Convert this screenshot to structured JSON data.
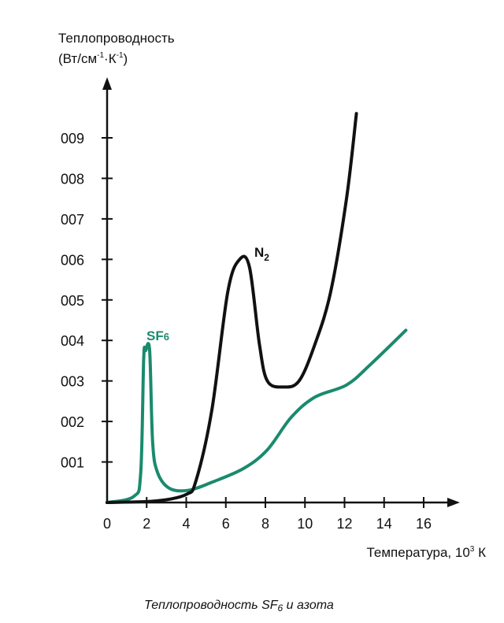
{
  "chart_data": {
    "type": "line",
    "title": "",
    "caption": "Теплопроводность SF6 и азота",
    "ylabel_line1": "Теплопроводность",
    "ylabel_line2": "(Вт/см-1·К-1)",
    "xlabel": "Температура, 10³ К",
    "xlim": [
      0,
      16
    ],
    "ylim": [
      0,
      0.09
    ],
    "x_ticks": [
      0,
      2,
      4,
      6,
      8,
      10,
      12,
      14,
      16
    ],
    "x_tick_labels": [
      "0",
      "2",
      "4",
      "6",
      "8",
      "10",
      "12",
      "14",
      "16"
    ],
    "y_ticks": [
      0.01,
      0.02,
      0.03,
      0.04,
      0.05,
      0.06,
      0.07,
      0.08,
      0.09
    ],
    "y_tick_labels": [
      "001",
      "002",
      "003",
      "004",
      "005",
      "006",
      "007",
      "008",
      "009"
    ],
    "grid": false,
    "series": [
      {
        "name": "N2",
        "color": "#111111",
        "x": [
          0,
          2.5,
          4,
          4.5,
          5.3,
          6.1,
          6.7,
          7.2,
          7.7,
          8.1,
          8.9,
          9.7,
          10.5,
          11.3,
          12.1,
          12.6
        ],
        "y": [
          0,
          0.0004,
          0.002,
          0.0055,
          0.023,
          0.052,
          0.06,
          0.058,
          0.039,
          0.03,
          0.0285,
          0.03,
          0.039,
          0.052,
          0.075,
          0.096
        ]
      },
      {
        "name": "SF6",
        "color": "#1a8a6e",
        "x": [
          0,
          1.35,
          1.7,
          1.85,
          1.95,
          2.15,
          2.3,
          2.55,
          3.15,
          4.1,
          5.3,
          6.9,
          8.1,
          9.3,
          10.5,
          12.1,
          13.3,
          15.1
        ],
        "y": [
          0,
          0.0015,
          0.0074,
          0.0356,
          0.0375,
          0.0375,
          0.015,
          0.0074,
          0.0035,
          0.003,
          0.005,
          0.0084,
          0.013,
          0.021,
          0.026,
          0.029,
          0.034,
          0.0425
        ]
      }
    ]
  }
}
